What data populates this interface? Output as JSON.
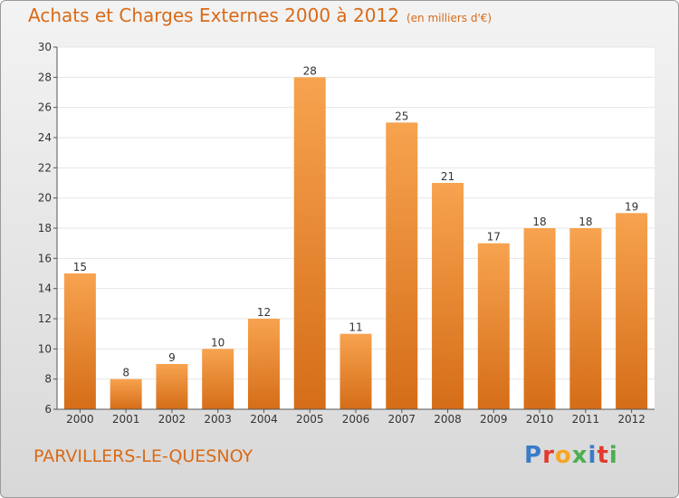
{
  "header": {
    "title": "Achats et Charges Externes 2000 à 2012",
    "subtitle": "(en milliers d'€)"
  },
  "footer": {
    "town": "PARVILLERS-LE-QUESNOY",
    "logo_text": "Proxiti",
    "logo_colors": [
      "#3a7cc7",
      "#e23a2e",
      "#f5a623",
      "#4caf50",
      "#3a7cc7",
      "#e23a2e",
      "#4caf50"
    ]
  },
  "chart_data": {
    "type": "bar",
    "title": "Achats et Charges Externes 2000 à 2012",
    "subtitle": "(en milliers d'€)",
    "categories": [
      "2000",
      "2001",
      "2002",
      "2003",
      "2004",
      "2005",
      "2006",
      "2007",
      "2008",
      "2009",
      "2010",
      "2011",
      "2012"
    ],
    "values": [
      15,
      8,
      9,
      10,
      12,
      28,
      11,
      25,
      21,
      17,
      18,
      18,
      19
    ],
    "ylim": [
      6,
      30
    ],
    "yticks": [
      6,
      8,
      10,
      12,
      14,
      16,
      18,
      20,
      22,
      24,
      26,
      28,
      30
    ],
    "grid": true,
    "bar_color_top": "#f7a34f",
    "bar_color_bottom": "#d56d18"
  }
}
